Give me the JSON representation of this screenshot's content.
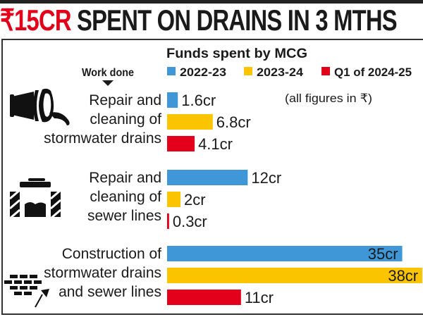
{
  "title": {
    "highlight": "₹15CR",
    "rest": "SPENT ON DRAINS IN 3 MTHS"
  },
  "chart_data": {
    "type": "bar",
    "orientation": "horizontal",
    "subtitle": "Funds spent by MCG",
    "category_header": "Work done",
    "note": "(all figures in ₹)",
    "categories": [
      [
        "Repair and",
        "cleaning of",
        "stormwater drains"
      ],
      [
        "Repair and",
        "cleaning of",
        "sewer lines"
      ],
      [
        "Construction of",
        "stormwater drains",
        "and sewer lines"
      ]
    ],
    "category_icons": [
      "pipe-outflow-icon",
      "manhole-icon",
      "bricks-trowel-icon"
    ],
    "unit": "cr",
    "series": [
      {
        "name": "2022-23",
        "color": "#3f97d8",
        "values": [
          1.6,
          12,
          35
        ],
        "labels": [
          "1.6cr",
          "12cr",
          "35cr"
        ]
      },
      {
        "name": "2023-24",
        "color": "#fbc400",
        "values": [
          6.8,
          2,
          38
        ],
        "labels": [
          "6.8cr",
          "2cr",
          "38cr"
        ]
      },
      {
        "name": "Q1 of 2024-25",
        "color": "#e2001a",
        "values": [
          4.1,
          0.3,
          11
        ],
        "labels": [
          "4.1cr",
          "0.3cr",
          "11cr"
        ]
      }
    ],
    "legend": "top",
    "grid": false
  }
}
